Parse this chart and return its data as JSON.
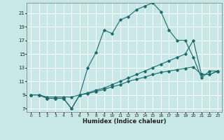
{
  "xlabel": "Humidex (Indice chaleur)",
  "background_color": "#c8e8e8",
  "grid_color": "#ffffff",
  "line_color": "#1a6b6b",
  "xlim": [
    -0.5,
    23.5
  ],
  "ylim": [
    6.5,
    22.5
  ],
  "yticks": [
    7,
    9,
    11,
    13,
    15,
    17,
    19,
    21
  ],
  "xticks": [
    0,
    1,
    2,
    3,
    4,
    5,
    6,
    7,
    8,
    9,
    10,
    11,
    12,
    13,
    14,
    15,
    16,
    17,
    18,
    19,
    20,
    21,
    22,
    23
  ],
  "series1_x": [
    0,
    1,
    2,
    3,
    4,
    5,
    6,
    7,
    8,
    9,
    10,
    11,
    12,
    13,
    14,
    15,
    16,
    17,
    18,
    19,
    20,
    21,
    22,
    23
  ],
  "series1_y": [
    9,
    9,
    8.5,
    8.5,
    8.5,
    7.0,
    9.0,
    13.0,
    15.2,
    18.5,
    18.0,
    20.0,
    20.5,
    21.5,
    22.0,
    22.5,
    21.2,
    18.5,
    17.0,
    17.0,
    14.5,
    11.5,
    12.5,
    12.5
  ],
  "series2_x": [
    0,
    1,
    2,
    3,
    4,
    5,
    6,
    7,
    8,
    9,
    10,
    11,
    12,
    13,
    14,
    15,
    16,
    17,
    18,
    19,
    20,
    21,
    22,
    23
  ],
  "series2_y": [
    9,
    9,
    8.5,
    8.5,
    8.5,
    7.0,
    9.0,
    9.2,
    9.5,
    9.8,
    10.2,
    10.5,
    11.0,
    11.3,
    11.6,
    12.0,
    12.3,
    12.5,
    12.7,
    12.9,
    13.1,
    12.0,
    12.0,
    12.5
  ],
  "series3_x": [
    0,
    1,
    2,
    3,
    4,
    5,
    6,
    7,
    8,
    9,
    10,
    11,
    12,
    13,
    14,
    15,
    16,
    17,
    18,
    19,
    20,
    21,
    22,
    23
  ],
  "series3_y": [
    9,
    9,
    8.7,
    8.7,
    8.7,
    8.7,
    9.0,
    9.3,
    9.7,
    10.0,
    10.5,
    11.0,
    11.5,
    12.0,
    12.5,
    13.0,
    13.5,
    14.0,
    14.5,
    15.0,
    17.0,
    12.0,
    12.0,
    12.5
  ]
}
